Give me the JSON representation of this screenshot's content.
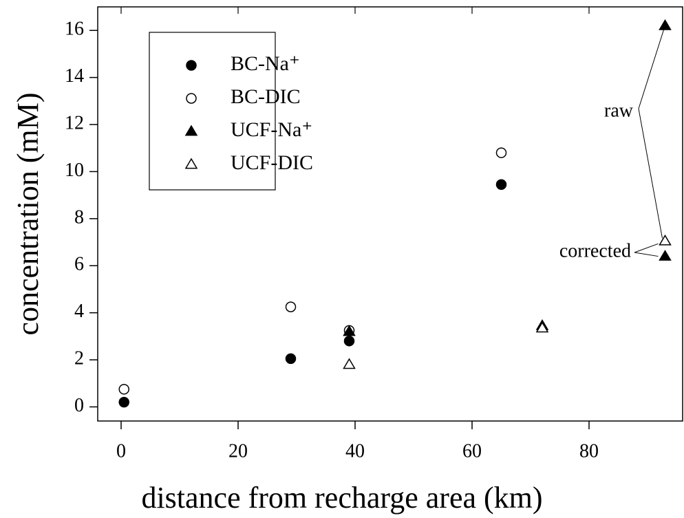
{
  "chart_data": {
    "type": "scatter",
    "xlabel": "distance from recharge area (km)",
    "ylabel": "concentration (mM)",
    "xlim": [
      -4,
      96
    ],
    "ylim": [
      -0.6,
      17
    ],
    "xticks": [
      0,
      20,
      40,
      60,
      80
    ],
    "yticks": [
      0,
      2,
      4,
      6,
      8,
      10,
      12,
      14,
      16
    ],
    "series": [
      {
        "name": "BC-Na⁺",
        "color": "#000000",
        "marker": "circle",
        "filled": true,
        "x": [
          0.5,
          29,
          39,
          65
        ],
        "values": [
          0.2,
          2.05,
          2.8,
          9.45
        ]
      },
      {
        "name": "BC-DIC",
        "color": "#000000",
        "marker": "circle",
        "filled": false,
        "x": [
          0.5,
          29,
          39,
          65
        ],
        "values": [
          0.75,
          4.25,
          3.25,
          10.8
        ]
      },
      {
        "name": "UCF-Na⁺",
        "color": "#000000",
        "marker": "triangle",
        "filled": true,
        "x": [
          39,
          72,
          93,
          93
        ],
        "values": [
          3.2,
          3.45,
          16.2,
          6.4
        ]
      },
      {
        "name": "UCF-DIC",
        "color": "#000000",
        "marker": "triangle",
        "filled": false,
        "x": [
          39,
          72,
          93
        ],
        "values": [
          1.8,
          3.35,
          7.05
        ]
      }
    ],
    "annotations": [
      "raw",
      "corrected"
    ]
  }
}
